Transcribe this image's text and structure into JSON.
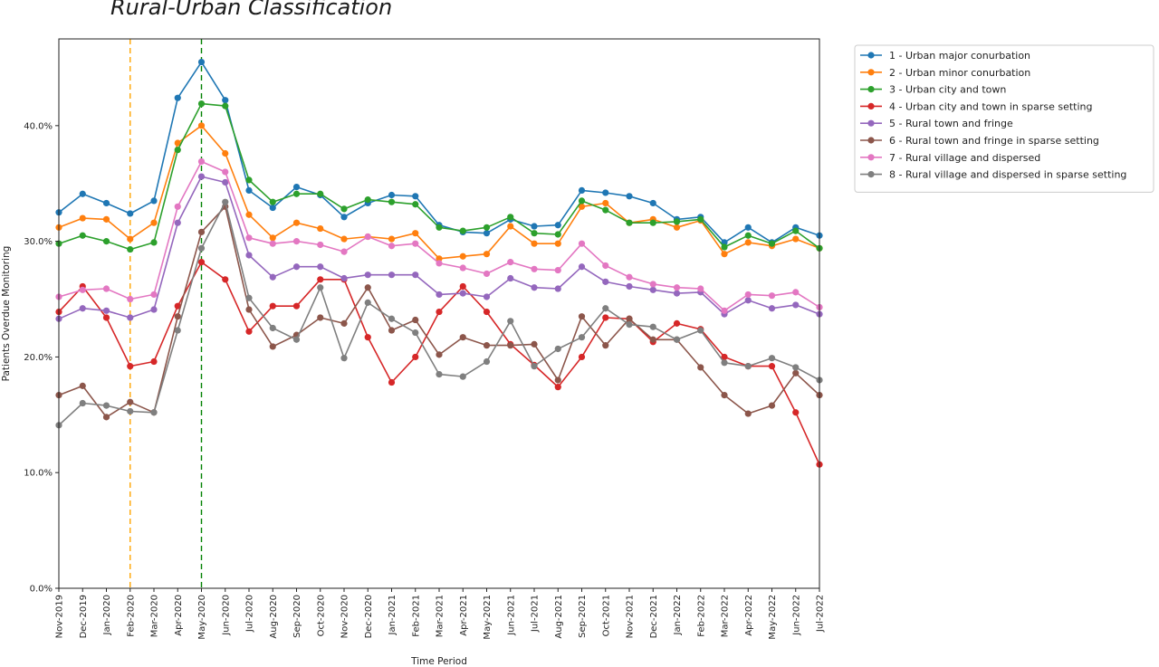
{
  "chart_data": {
    "type": "line",
    "title": "Rural-Urban Classification",
    "xlabel": "Time Period",
    "ylabel": "Patients Overdue Monitoring",
    "ylim": [
      0,
      47.5
    ],
    "yticks": [
      0,
      10,
      20,
      30,
      40
    ],
    "ytick_labels": [
      "0.0%",
      "10.0%",
      "20.0%",
      "30.0%",
      "40.0%"
    ],
    "grid": false,
    "legend_position": "outside-right",
    "categories": [
      "Nov-2019",
      "Dec-2019",
      "Jan-2020",
      "Feb-2020",
      "Mar-2020",
      "Apr-2020",
      "May-2020",
      "Jun-2020",
      "Jul-2020",
      "Aug-2020",
      "Sep-2020",
      "Oct-2020",
      "Nov-2020",
      "Dec-2020",
      "Jan-2021",
      "Feb-2021",
      "Mar-2021",
      "Apr-2021",
      "May-2021",
      "Jun-2021",
      "Jul-2021",
      "Aug-2021",
      "Sep-2021",
      "Oct-2021",
      "Nov-2021",
      "Dec-2021",
      "Jan-2022",
      "Feb-2022",
      "Mar-2022",
      "Apr-2022",
      "May-2022",
      "Jun-2022",
      "Jul-2022"
    ],
    "vlines": [
      {
        "x": "Feb-2020",
        "color": "#ffa500",
        "style": "dashed"
      },
      {
        "x": "May-2020",
        "color": "#008000",
        "style": "dashed"
      }
    ],
    "series": [
      {
        "name": "1 - Urban major conurbation",
        "color": "#1f77b4",
        "values": [
          32.5,
          34.1,
          33.3,
          32.4,
          33.5,
          42.4,
          45.5,
          42.2,
          34.4,
          32.9,
          34.7,
          34.0,
          32.1,
          33.3,
          34.0,
          33.9,
          31.4,
          30.8,
          30.7,
          31.9,
          31.3,
          31.4,
          34.4,
          34.2,
          33.9,
          33.3,
          31.9,
          32.1,
          29.9,
          31.2,
          29.9,
          31.2,
          30.5
        ]
      },
      {
        "name": "2 - Urban minor conurbation",
        "color": "#ff7f0e",
        "values": [
          31.2,
          32.0,
          31.9,
          30.2,
          31.6,
          38.5,
          40.0,
          37.6,
          32.3,
          30.3,
          31.6,
          31.1,
          30.2,
          30.4,
          30.2,
          30.7,
          28.5,
          28.7,
          28.9,
          31.3,
          29.8,
          29.8,
          33.0,
          33.3,
          31.6,
          31.9,
          31.2,
          31.8,
          28.9,
          29.9,
          29.6,
          30.2,
          29.4
        ]
      },
      {
        "name": "3 - Urban city and town",
        "color": "#2ca02c",
        "values": [
          29.8,
          30.5,
          30.0,
          29.3,
          29.9,
          37.9,
          41.9,
          41.7,
          35.3,
          33.4,
          34.1,
          34.1,
          32.8,
          33.6,
          33.4,
          33.2,
          31.2,
          30.9,
          31.2,
          32.1,
          30.7,
          30.6,
          33.5,
          32.7,
          31.6,
          31.6,
          31.7,
          31.9,
          29.5,
          30.5,
          29.8,
          30.9,
          29.4
        ]
      },
      {
        "name": "4 - Urban city and town in sparse setting",
        "color": "#d62728",
        "values": [
          23.9,
          26.1,
          23.4,
          19.2,
          19.6,
          24.4,
          28.2,
          26.7,
          22.2,
          24.4,
          24.4,
          26.7,
          26.7,
          21.7,
          17.8,
          20.0,
          23.9,
          26.1,
          23.9,
          21.1,
          19.3,
          17.4,
          20.0,
          23.4,
          23.3,
          21.3,
          22.9,
          22.4,
          20.0,
          19.2,
          19.2,
          15.2,
          10.7
        ]
      },
      {
        "name": "5 - Rural town and fringe",
        "color": "#9467bd",
        "values": [
          23.3,
          24.2,
          24.0,
          23.4,
          24.1,
          31.6,
          35.6,
          35.1,
          28.8,
          26.9,
          27.8,
          27.8,
          26.8,
          27.1,
          27.1,
          27.1,
          25.4,
          25.5,
          25.2,
          26.8,
          26.0,
          25.9,
          27.8,
          26.5,
          26.1,
          25.8,
          25.5,
          25.6,
          23.7,
          24.9,
          24.2,
          24.5,
          23.7
        ]
      },
      {
        "name": "6 - Rural town and fringe in sparse setting",
        "color": "#8c564b",
        "values": [
          16.7,
          17.5,
          14.8,
          16.1,
          15.2,
          23.5,
          30.8,
          33.0,
          24.1,
          20.9,
          21.9,
          23.4,
          22.9,
          26.0,
          22.3,
          23.2,
          20.2,
          21.7,
          21.0,
          21.0,
          21.1,
          18.0,
          23.5,
          21.0,
          23.3,
          21.5,
          21.5,
          19.1,
          16.7,
          15.1,
          15.8,
          18.6,
          16.7
        ]
      },
      {
        "name": "7 - Rural village and dispersed",
        "color": "#e377c2",
        "values": [
          25.2,
          25.8,
          25.9,
          25.0,
          25.4,
          33.0,
          36.9,
          36.0,
          30.3,
          29.8,
          30.0,
          29.7,
          29.1,
          30.4,
          29.6,
          29.8,
          28.1,
          27.7,
          27.2,
          28.2,
          27.6,
          27.5,
          29.8,
          27.9,
          26.9,
          26.3,
          26.0,
          25.9,
          24.0,
          25.4,
          25.3,
          25.6,
          24.3
        ]
      },
      {
        "name": "8 - Rural village and dispersed in sparse setting",
        "color": "#7f7f7f",
        "values": [
          14.1,
          16.0,
          15.8,
          15.3,
          15.2,
          22.3,
          29.4,
          33.4,
          25.1,
          22.5,
          21.5,
          26.0,
          19.9,
          24.7,
          23.3,
          22.1,
          18.5,
          18.3,
          19.6,
          23.1,
          19.2,
          20.7,
          21.7,
          24.2,
          22.8,
          22.6,
          21.5,
          22.3,
          19.5,
          19.2,
          19.9,
          19.1,
          18.0
        ]
      }
    ]
  }
}
